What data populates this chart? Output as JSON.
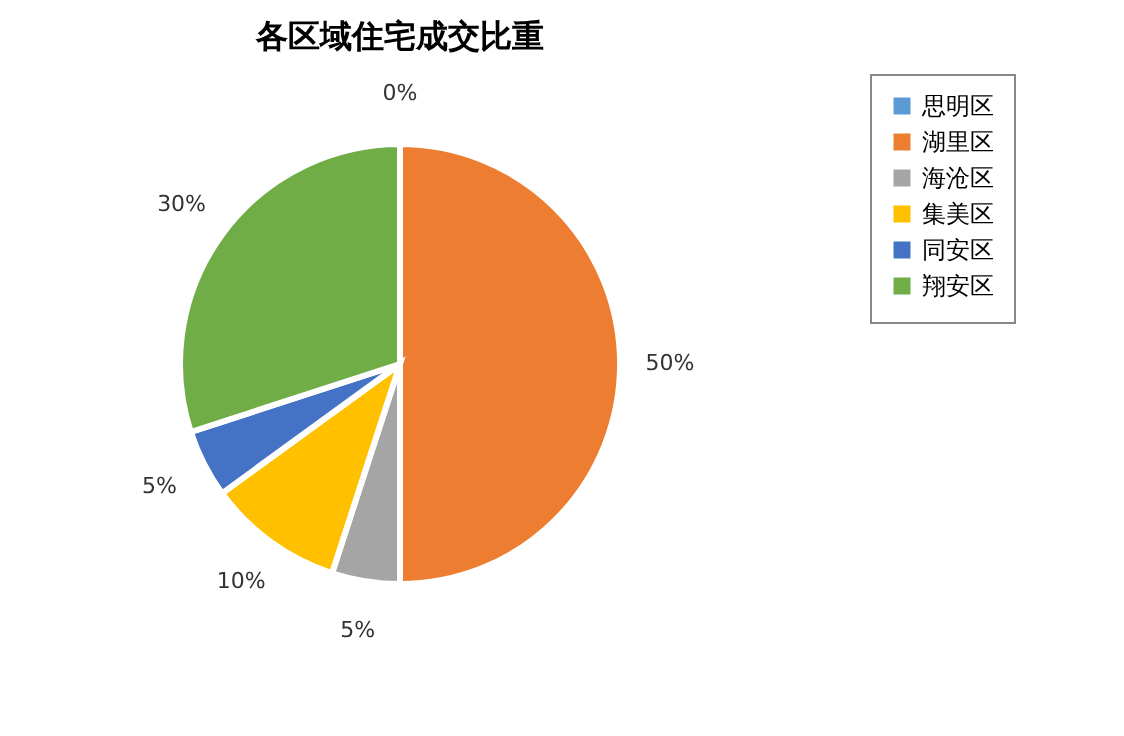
{
  "chart_data": {
    "type": "pie",
    "title": "各区域住宅成交比重",
    "categories": [
      "思明区",
      "湖里区",
      "海沧区",
      "集美区",
      "同安区",
      "翔安区"
    ],
    "values": [
      0,
      50,
      5,
      10,
      5,
      30
    ],
    "value_labels": [
      "0%",
      "50%",
      "5%",
      "10%",
      "5%",
      "30%"
    ],
    "colors": [
      "#5b9bd5",
      "#ed7d31",
      "#a5a5a5",
      "#ffc000",
      "#4472c4",
      "#70ad47"
    ],
    "legend": "right"
  }
}
